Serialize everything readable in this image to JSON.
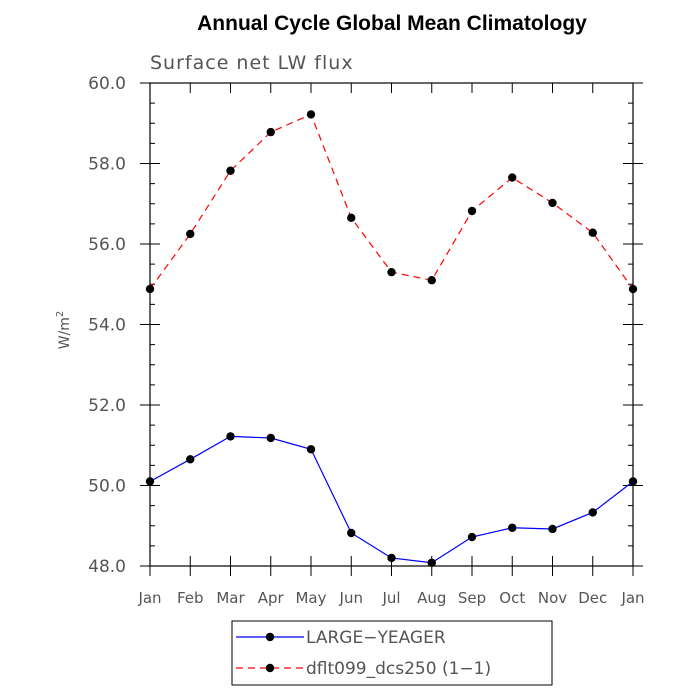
{
  "chart_data": {
    "type": "line",
    "title": "Annual Cycle Global Mean Climatology",
    "subtitle": "Surface net LW flux",
    "ylabel_base": "W/m",
    "ylabel_exp": "2",
    "categories": [
      "Jan",
      "Feb",
      "Mar",
      "Apr",
      "May",
      "Jun",
      "Jul",
      "Aug",
      "Sep",
      "Oct",
      "Nov",
      "Dec",
      "Jan"
    ],
    "ylim": [
      48.0,
      60.0
    ],
    "yticks": [
      "48.0",
      "50.0",
      "52.0",
      "54.0",
      "56.0",
      "58.0",
      "60.0"
    ],
    "series": [
      {
        "name": "LARGE−YEAGER",
        "color": "#0000ff",
        "dash": "solid",
        "values": [
          50.1,
          50.65,
          51.22,
          51.18,
          50.9,
          48.82,
          48.2,
          48.08,
          48.72,
          48.95,
          48.92,
          49.33,
          50.1
        ]
      },
      {
        "name": "dflt099_dcs250 (1−1)",
        "color": "#ff0000",
        "dash": "dashed",
        "values": [
          54.88,
          56.25,
          57.82,
          58.78,
          59.22,
          56.65,
          55.3,
          55.1,
          56.82,
          57.65,
          57.02,
          56.28,
          54.88
        ]
      }
    ],
    "grid": false,
    "legend": "bottom-center"
  }
}
